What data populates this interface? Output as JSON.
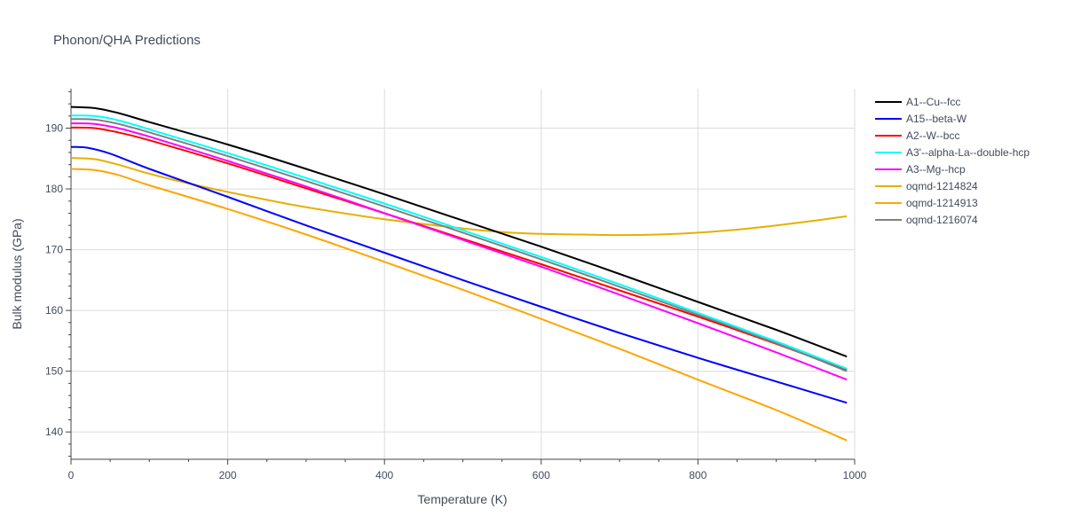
{
  "chart_data": {
    "type": "line",
    "title": "Phonon/QHA Predictions",
    "xlabel": "Temperature (K)",
    "ylabel": "Bulk modulus (GPa)",
    "xlim": [
      0,
      1000
    ],
    "ylim": [
      135.5,
      196.5
    ],
    "xticks": [
      0,
      200,
      400,
      600,
      800,
      1000
    ],
    "yticks": [
      140,
      150,
      160,
      170,
      180,
      190
    ],
    "grid": true,
    "legend_position": "top-right",
    "series": [
      {
        "name": "A1--Cu--fcc",
        "color": "#000000",
        "x": [
          0,
          30,
          60,
          100,
          200,
          300,
          400,
          500,
          600,
          700,
          800,
          900,
          990
        ],
        "y": [
          193.5,
          193.3,
          192.5,
          191.0,
          187.3,
          183.3,
          179.1,
          174.8,
          170.5,
          166.0,
          161.4,
          156.8,
          152.4
        ]
      },
      {
        "name": "A15--beta-W",
        "color": "#0000ff",
        "x": [
          0,
          20,
          50,
          100,
          200,
          300,
          400,
          500,
          600,
          700,
          800,
          900,
          990
        ],
        "y": [
          186.9,
          186.8,
          185.8,
          183.3,
          178.7,
          174.0,
          169.5,
          165.0,
          160.6,
          156.3,
          152.2,
          148.3,
          144.8
        ]
      },
      {
        "name": "A2--W--bcc",
        "color": "#ff0000",
        "x": [
          0,
          30,
          60,
          100,
          200,
          300,
          400,
          500,
          600,
          700,
          800,
          900,
          990
        ],
        "y": [
          190.1,
          190.0,
          189.3,
          188.0,
          184.2,
          180.1,
          176.0,
          171.8,
          167.6,
          163.3,
          159.0,
          154.5,
          150.2
        ]
      },
      {
        "name": "A3'--alpha-La--double-hcp",
        "color": "#00ffff",
        "x": [
          0,
          30,
          60,
          100,
          200,
          300,
          400,
          500,
          600,
          700,
          800,
          900,
          990
        ],
        "y": [
          192.1,
          192.0,
          191.3,
          189.8,
          185.9,
          181.8,
          177.6,
          173.2,
          168.8,
          164.3,
          159.6,
          154.9,
          150.4
        ]
      },
      {
        "name": "A3--Mg--hcp",
        "color": "#ff00ff",
        "x": [
          0,
          30,
          60,
          100,
          200,
          300,
          400,
          500,
          600,
          700,
          800,
          900,
          990
        ],
        "y": [
          190.8,
          190.7,
          190.0,
          188.6,
          184.6,
          180.4,
          176.0,
          171.6,
          167.2,
          162.6,
          157.9,
          153.1,
          148.6
        ]
      },
      {
        "name": "oqmd-1214824",
        "color": "#e6b000",
        "x": [
          0,
          30,
          60,
          100,
          150,
          200,
          250,
          300,
          400,
          500,
          550,
          600,
          650,
          700,
          750,
          800,
          850,
          900,
          950,
          990
        ],
        "y": [
          185.1,
          184.9,
          184.0,
          182.5,
          180.9,
          179.5,
          178.2,
          177.0,
          175.0,
          173.5,
          172.9,
          172.6,
          172.5,
          172.4,
          172.5,
          172.8,
          173.3,
          174.0,
          174.8,
          175.5
        ]
      },
      {
        "name": "oqmd-1214913",
        "color": "#ffa500",
        "x": [
          0,
          30,
          60,
          100,
          200,
          300,
          400,
          500,
          600,
          700,
          800,
          900,
          990
        ],
        "y": [
          183.3,
          183.1,
          182.3,
          180.6,
          176.7,
          172.5,
          168.0,
          163.4,
          158.6,
          153.7,
          148.6,
          143.6,
          138.6
        ]
      },
      {
        "name": "oqmd-1216074",
        "color": "#808080",
        "x": [
          0,
          30,
          60,
          100,
          200,
          300,
          400,
          500,
          600,
          700,
          800,
          900,
          990
        ],
        "y": [
          191.5,
          191.4,
          190.7,
          189.3,
          185.4,
          181.3,
          177.1,
          172.8,
          168.4,
          163.9,
          159.3,
          154.6,
          150.0
        ]
      }
    ]
  }
}
